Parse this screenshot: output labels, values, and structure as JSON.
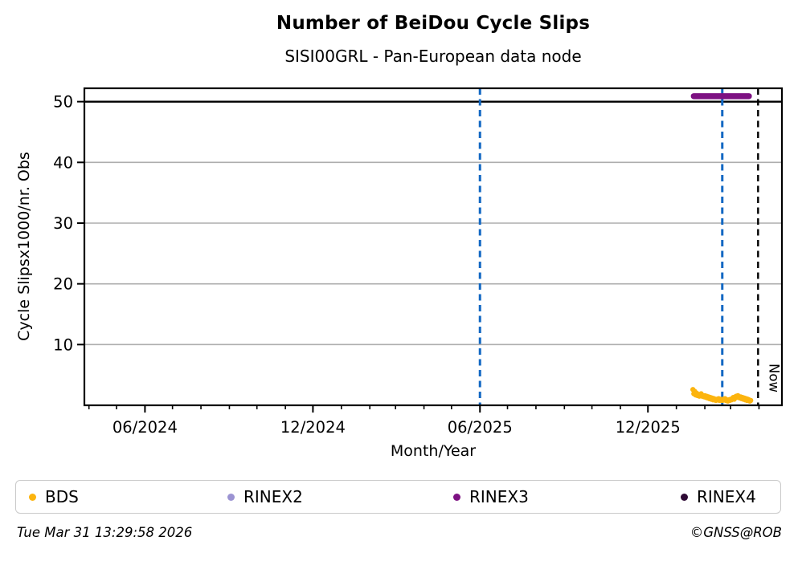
{
  "page": {
    "title": "Number of BeiDou Cycle Slips",
    "subtitle": "SISI00GRL - Pan-European data node",
    "footer_left": "Tue Mar 31 13:29:58 2026",
    "footer_right": "©GNSS@ROB"
  },
  "chart_data": {
    "type": "scatter",
    "title": "Number of BeiDou Cycle Slips",
    "subtitle": "SISI00GRL - Pan-European data node",
    "xlabel": "Month/Year",
    "ylabel": "Cycle Slipsx1000/nr. Obs",
    "x_range": [
      "2024-03-27",
      "2026-04-26"
    ],
    "ylim": [
      0,
      52.2
    ],
    "yticks": [
      10,
      20,
      30,
      40,
      50
    ],
    "xticks_major": [
      {
        "date": "2024-06-01",
        "label": "06/2024"
      },
      {
        "date": "2024-12-01",
        "label": "12/2024"
      },
      {
        "date": "2025-06-01",
        "label": "06/2025"
      },
      {
        "date": "2025-12-01",
        "label": "12/2025"
      }
    ],
    "minor_ticks": "monthly",
    "grid": {
      "horizontal": true,
      "vertical": false,
      "color": "#ADADAD"
    },
    "axis_color": "#000000",
    "legend": {
      "position": "bottom",
      "entries": [
        {
          "label": "BDS",
          "color": "#FCB40E"
        },
        {
          "label": "RINEX2",
          "color": "#9B93D2"
        },
        {
          "label": "RINEX3",
          "color": "#7D1182"
        },
        {
          "label": "RINEX4",
          "color": "#2E0A35"
        }
      ]
    },
    "reference_lines": [
      {
        "kind": "hline",
        "y": 50,
        "color": "#000000",
        "style": "solid"
      },
      {
        "kind": "vline",
        "date": "2025-06-01",
        "color": "#1268C3",
        "style": "dashed"
      },
      {
        "kind": "vline",
        "date": "2026-02-20",
        "color": "#1268C3",
        "style": "dashed"
      },
      {
        "kind": "vline",
        "date": "2026-03-31",
        "color": "#000000",
        "style": "dashed",
        "label": "Now"
      }
    ],
    "series": [
      {
        "name": "BDS",
        "color": "#FCB40E",
        "draw": "dots",
        "points": [
          [
            "2026-01-19",
            2.6
          ],
          [
            "2026-01-20",
            1.9
          ],
          [
            "2026-01-21",
            2.3
          ],
          [
            "2026-01-22",
            1.7
          ],
          [
            "2026-01-23",
            2.0
          ],
          [
            "2026-01-24",
            1.6
          ],
          [
            "2026-01-25",
            1.8
          ],
          [
            "2026-01-26",
            1.5
          ],
          [
            "2026-01-27",
            1.7
          ],
          [
            "2026-01-28",
            1.9
          ],
          [
            "2026-01-29",
            1.5
          ],
          [
            "2026-01-30",
            1.6
          ],
          [
            "2026-01-31",
            1.4
          ],
          [
            "2026-02-01",
            1.6
          ],
          [
            "2026-02-02",
            1.3
          ],
          [
            "2026-02-03",
            1.5
          ],
          [
            "2026-02-04",
            1.2
          ],
          [
            "2026-02-05",
            1.4
          ],
          [
            "2026-02-06",
            1.1
          ],
          [
            "2026-02-07",
            1.3
          ],
          [
            "2026-02-08",
            1.0
          ],
          [
            "2026-02-09",
            1.2
          ],
          [
            "2026-02-10",
            0.9
          ],
          [
            "2026-02-11",
            1.1
          ],
          [
            "2026-02-12",
            1.0
          ],
          [
            "2026-02-13",
            0.8
          ],
          [
            "2026-02-14",
            1.0
          ],
          [
            "2026-02-15",
            0.9
          ],
          [
            "2026-02-16",
            1.1
          ],
          [
            "2026-02-17",
            0.8
          ],
          [
            "2026-02-18",
            1.0
          ],
          [
            "2026-02-19",
            0.9
          ],
          [
            "2026-02-20",
            0.8
          ],
          [
            "2026-02-21",
            1.0
          ],
          [
            "2026-02-22",
            0.9
          ],
          [
            "2026-02-23",
            1.1
          ],
          [
            "2026-02-24",
            0.8
          ],
          [
            "2026-02-25",
            0.9
          ],
          [
            "2026-02-26",
            0.7
          ],
          [
            "2026-02-27",
            0.9
          ],
          [
            "2026-02-28",
            0.8
          ],
          [
            "2026-03-01",
            1.0
          ],
          [
            "2026-03-02",
            0.9
          ],
          [
            "2026-03-03",
            1.1
          ],
          [
            "2026-03-04",
            1.3
          ],
          [
            "2026-03-05",
            1.0
          ],
          [
            "2026-03-06",
            1.2
          ],
          [
            "2026-03-07",
            1.5
          ],
          [
            "2026-03-08",
            1.3
          ],
          [
            "2026-03-09",
            1.6
          ],
          [
            "2026-03-10",
            1.4
          ],
          [
            "2026-03-11",
            1.2
          ],
          [
            "2026-03-12",
            1.4
          ],
          [
            "2026-03-13",
            1.1
          ],
          [
            "2026-03-14",
            1.3
          ],
          [
            "2026-03-15",
            1.0
          ],
          [
            "2026-03-16",
            1.2
          ],
          [
            "2026-03-17",
            0.9
          ],
          [
            "2026-03-18",
            1.1
          ],
          [
            "2026-03-19",
            0.8
          ],
          [
            "2026-03-20",
            1.0
          ],
          [
            "2026-03-21",
            0.9
          ],
          [
            "2026-03-22",
            0.7
          ],
          [
            "2026-03-23",
            0.8
          ]
        ]
      },
      {
        "name": "RINEX2",
        "color": "#9B93D2",
        "draw": "dots",
        "points": []
      },
      {
        "name": "RINEX3",
        "color": "#7D1182",
        "draw": "thickline",
        "points": [
          [
            "2026-01-20",
            50.9
          ],
          [
            "2026-03-21",
            50.9
          ]
        ]
      },
      {
        "name": "RINEX4",
        "color": "#2E0A35",
        "draw": "dots",
        "points": []
      }
    ]
  }
}
